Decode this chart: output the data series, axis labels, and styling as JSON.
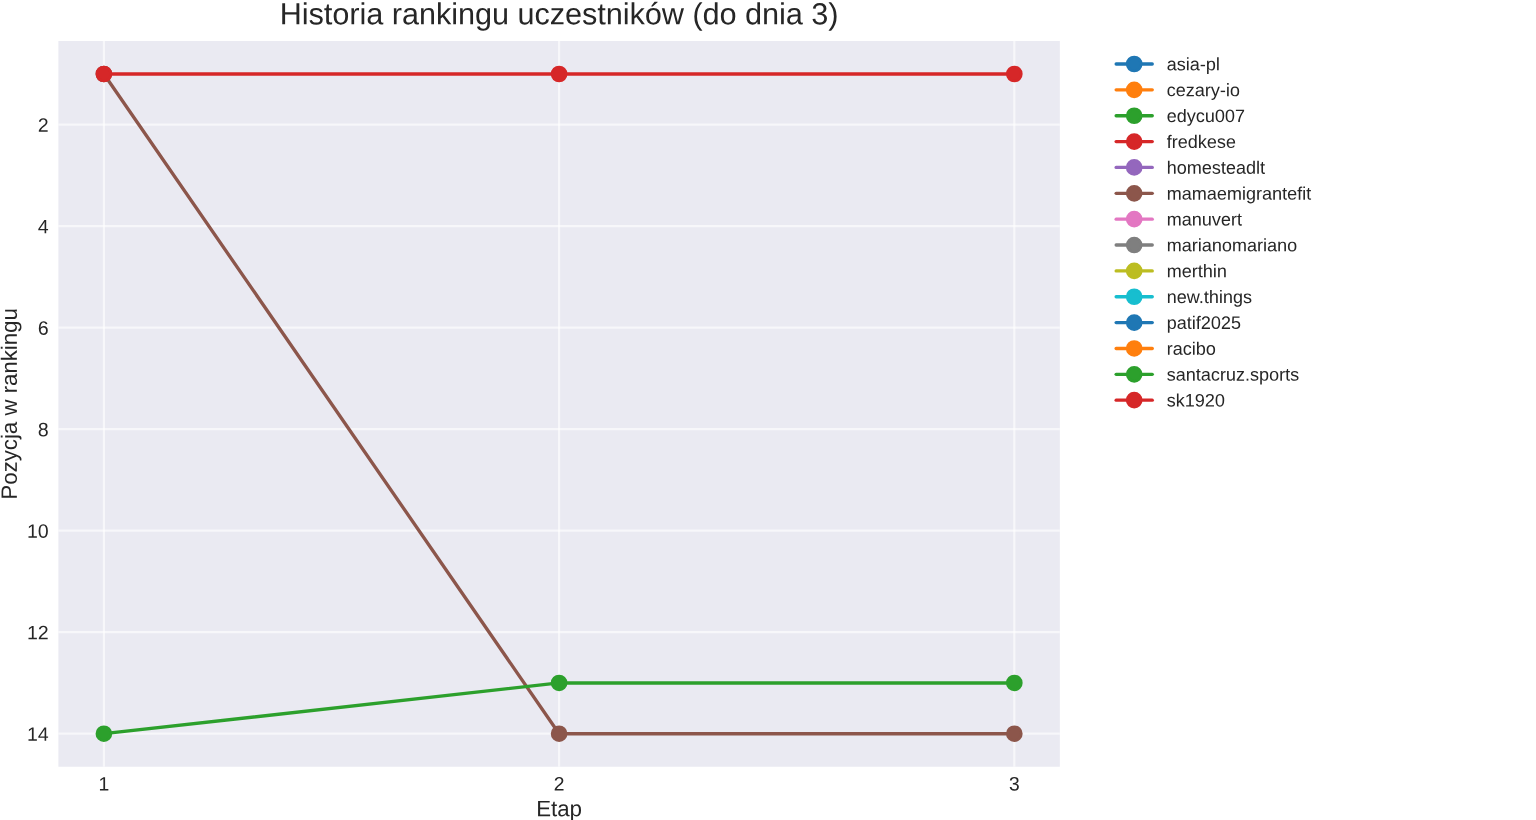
{
  "chart_data": {
    "type": "line",
    "title": "Historia rankingu uczestników (do dnia 3)",
    "xlabel": "Etap",
    "ylabel": "Pozycja w rankingu",
    "x": [
      1,
      2,
      3
    ],
    "xlim": [
      0.9,
      3.1
    ],
    "xticks": [
      1,
      2,
      3
    ],
    "ylim": [
      14.65,
      0.35
    ],
    "yticks": [
      2,
      4,
      6,
      8,
      10,
      12,
      14
    ],
    "grid": true,
    "legend": "top right",
    "marker": "circle",
    "line_style": "solid",
    "series": [
      {
        "name": "asia-pl",
        "color": "#1f77b4",
        "values": [
          null,
          null,
          null
        ]
      },
      {
        "name": "cezary-io",
        "color": "#ff7f0e",
        "values": [
          null,
          null,
          null
        ]
      },
      {
        "name": "edycu007",
        "color": "#2ca02c",
        "values": [
          null,
          null,
          null
        ]
      },
      {
        "name": "fredkese",
        "color": "#d62728",
        "values": [
          null,
          null,
          null
        ]
      },
      {
        "name": "homesteadlt",
        "color": "#9467bd",
        "values": [
          null,
          null,
          null
        ]
      },
      {
        "name": "mamaemigrantefit",
        "color": "#8c564b",
        "values": [
          1,
          14,
          14
        ]
      },
      {
        "name": "manuvert",
        "color": "#e377c2",
        "values": [
          null,
          null,
          null
        ]
      },
      {
        "name": "marianomariano",
        "color": "#7f7f7f",
        "values": [
          null,
          null,
          null
        ]
      },
      {
        "name": "merthin",
        "color": "#bcbd22",
        "values": [
          null,
          null,
          null
        ]
      },
      {
        "name": "new.things",
        "color": "#17becf",
        "values": [
          null,
          null,
          null
        ]
      },
      {
        "name": "patif2025",
        "color": "#1f77b4",
        "values": [
          null,
          null,
          null
        ]
      },
      {
        "name": "racibo",
        "color": "#ff7f0e",
        "values": [
          null,
          null,
          null
        ]
      },
      {
        "name": "santacruz.sports",
        "color": "#2ca02c",
        "values": [
          14,
          13,
          13
        ]
      },
      {
        "name": "sk1920",
        "color": "#d62728",
        "values": [
          1,
          1,
          1
        ]
      }
    ]
  }
}
